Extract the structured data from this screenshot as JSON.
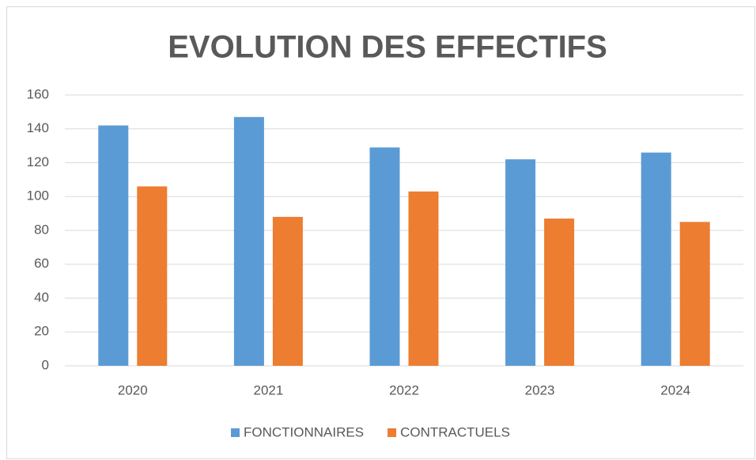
{
  "chart_data": {
    "type": "bar",
    "title": "EVOLUTION DES EFFECTIFS",
    "categories": [
      "2020",
      "2021",
      "2022",
      "2023",
      "2024"
    ],
    "series": [
      {
        "name": "FONCTIONNAIRES",
        "color": "#5b9bd5",
        "values": [
          142,
          147,
          129,
          122,
          126
        ]
      },
      {
        "name": "CONTRACTUELS",
        "color": "#ed7d31",
        "values": [
          106,
          88,
          103,
          87,
          85
        ]
      }
    ],
    "ylim": [
      0,
      160
    ],
    "yticks": [
      0,
      20,
      40,
      60,
      80,
      100,
      120,
      140,
      160
    ],
    "grid": true,
    "legend": "bottom"
  }
}
